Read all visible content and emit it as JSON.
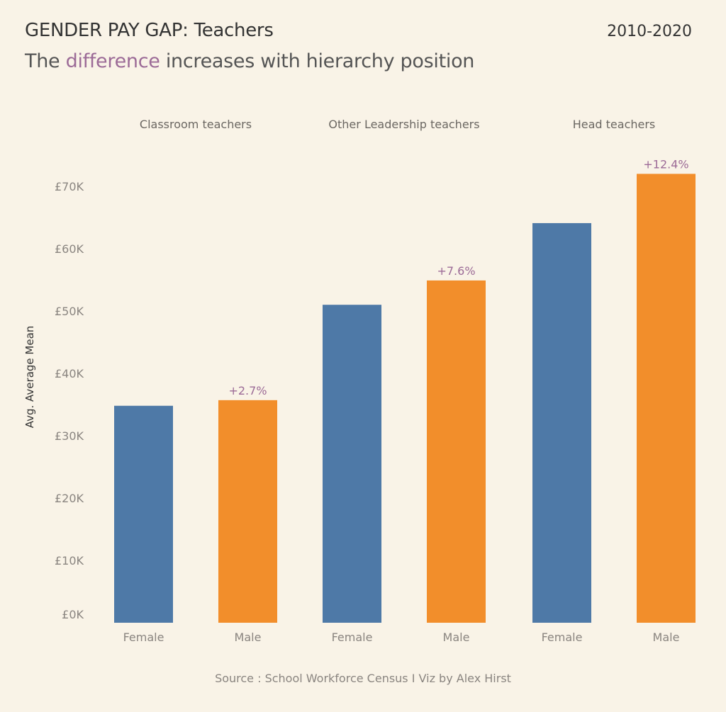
{
  "header": {
    "title": "GENDER PAY GAP:  Teachers",
    "period": "2010-2020",
    "subtitle_pre": "The ",
    "subtitle_highlight": "difference",
    "subtitle_post": " increases with hierarchy position"
  },
  "footer": {
    "source": "Source : School Workforce Census I Viz by Alex Hirst"
  },
  "colors": {
    "female": "#4e79a7",
    "male": "#f28e2b",
    "highlight": "#9c6b97",
    "background": "#f9f3e7"
  },
  "chart_data": {
    "type": "bar",
    "title": "GENDER PAY GAP: Teachers",
    "subtitle": "The difference increases with hierarchy position",
    "xlabel": "",
    "ylabel": "Avg. Average Mean",
    "ylim": [
      0,
      72000
    ],
    "grid": false,
    "y_ticks": [
      {
        "value": 0,
        "label": "£0K"
      },
      {
        "value": 10000,
        "label": "£10K"
      },
      {
        "value": 20000,
        "label": "£20K"
      },
      {
        "value": 30000,
        "label": "£30K"
      },
      {
        "value": 40000,
        "label": "£40K"
      },
      {
        "value": 50000,
        "label": "£50K"
      },
      {
        "value": 60000,
        "label": "£60K"
      },
      {
        "value": 70000,
        "label": "£70K"
      }
    ],
    "groups": [
      {
        "name": "Classroom teachers",
        "bars": [
          {
            "category": "Female",
            "value": 34800,
            "color": "#4e79a7",
            "annotation": ""
          },
          {
            "category": "Male",
            "value": 35700,
            "color": "#f28e2b",
            "annotation": "+2.7%"
          }
        ]
      },
      {
        "name": "Other Leadership teachers",
        "bars": [
          {
            "category": "Female",
            "value": 51000,
            "color": "#4e79a7",
            "annotation": ""
          },
          {
            "category": "Male",
            "value": 54900,
            "color": "#f28e2b",
            "annotation": "+7.6%"
          }
        ]
      },
      {
        "name": "Head teachers",
        "bars": [
          {
            "category": "Female",
            "value": 64100,
            "color": "#4e79a7",
            "annotation": ""
          },
          {
            "category": "Male",
            "value": 72000,
            "color": "#f28e2b",
            "annotation": "+12.4%"
          }
        ]
      }
    ]
  }
}
